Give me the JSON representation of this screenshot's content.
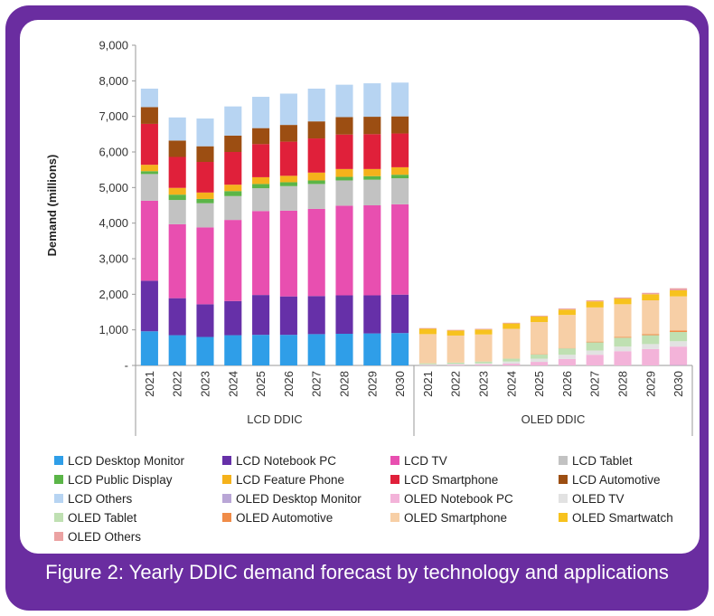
{
  "caption": "Figure 2: Yearly DDIC demand forecast by technology and applications",
  "chart_data": {
    "type": "bar",
    "stacked": true,
    "ylabel": "Demand (millions)",
    "ylim": [
      0,
      9000
    ],
    "yticks": [
      "-",
      "1,000",
      "2,000",
      "3,000",
      "4,000",
      "5,000",
      "6,000",
      "7,000",
      "8,000",
      "9,000"
    ],
    "grid": false,
    "legend_position": "bottom",
    "groups": [
      {
        "name": "LCD DDIC",
        "categories": [
          "2021",
          "2022",
          "2023",
          "2024",
          "2025",
          "2026",
          "2027",
          "2028",
          "2029",
          "2030"
        ],
        "series": [
          {
            "name": "LCD Desktop Monitor",
            "color": "#2f9ee8",
            "values": [
              960,
              850,
              800,
              850,
              860,
              860,
              880,
              890,
              900,
              910
            ]
          },
          {
            "name": "LCD Notebook PC",
            "color": "#6630a8",
            "values": [
              1420,
              1040,
              920,
              960,
              1120,
              1080,
              1070,
              1080,
              1070,
              1080
            ]
          },
          {
            "name": "LCD TV",
            "color": "#e84fb0",
            "values": [
              2250,
              2080,
              2160,
              2280,
              2360,
              2410,
              2450,
              2520,
              2530,
              2540
            ]
          },
          {
            "name": "LCD Tablet",
            "color": "#c2c2c2",
            "values": [
              750,
              680,
              680,
              670,
              640,
              690,
              700,
              710,
              720,
              730
            ]
          },
          {
            "name": "LCD Public Display",
            "color": "#5bb548",
            "values": [
              80,
              150,
              120,
              140,
              120,
              110,
              100,
              100,
              100,
              100
            ]
          },
          {
            "name": "LCD Feature Phone",
            "color": "#f5b21b",
            "values": [
              180,
              190,
              180,
              180,
              190,
              180,
              220,
              220,
              200,
              210
            ]
          },
          {
            "name": "LCD Smartphone",
            "color": "#e0203a",
            "values": [
              1150,
              870,
              860,
              920,
              930,
              960,
              960,
              970,
              980,
              950
            ]
          },
          {
            "name": "LCD Automotive",
            "color": "#9c4e12",
            "values": [
              470,
              460,
              440,
              460,
              450,
              470,
              480,
              490,
              490,
              480
            ]
          },
          {
            "name": "LCD Others",
            "color": "#b7d4f2",
            "values": [
              520,
              650,
              780,
              820,
              880,
              880,
              920,
              910,
              940,
              950
            ]
          }
        ]
      },
      {
        "name": "OLED DDIC",
        "categories": [
          "2021",
          "2022",
          "2023",
          "2024",
          "2025",
          "2026",
          "2027",
          "2028",
          "2029",
          "2030"
        ],
        "series": [
          {
            "name": "OLED Desktop Monitor",
            "color": "#b9a6d6",
            "values": [
              0,
              0,
              0,
              0,
              0,
              0,
              0,
              0,
              0,
              10
            ]
          },
          {
            "name": "OLED Notebook PC",
            "color": "#f3b3d9",
            "values": [
              10,
              20,
              30,
              50,
              100,
              180,
              300,
              400,
              460,
              520
            ]
          },
          {
            "name": "OLED TV",
            "color": "#e2e2e2",
            "values": [
              20,
              20,
              30,
              60,
              90,
              120,
              120,
              130,
              140,
              150
            ]
          },
          {
            "name": "OLED Tablet",
            "color": "#bfe0b2",
            "values": [
              30,
              40,
              50,
              80,
              120,
              180,
              230,
              250,
              250,
              260
            ]
          },
          {
            "name": "OLED Automotive",
            "color": "#f08c48",
            "values": [
              0,
              0,
              0,
              0,
              10,
              10,
              20,
              20,
              30,
              40
            ]
          },
          {
            "name": "OLED Smartphone",
            "color": "#f7cfa6",
            "values": [
              820,
              760,
              760,
              840,
              900,
              930,
              960,
              920,
              950,
              960
            ]
          },
          {
            "name": "OLED Smartwatch",
            "color": "#f7c21e",
            "values": [
              150,
              140,
              140,
              150,
              160,
              150,
              170,
              160,
              170,
              170
            ]
          },
          {
            "name": "OLED Others",
            "color": "#eba2a2",
            "values": [
              20,
              20,
              20,
              20,
              20,
              30,
              30,
              30,
              40,
              60
            ]
          }
        ]
      }
    ]
  }
}
